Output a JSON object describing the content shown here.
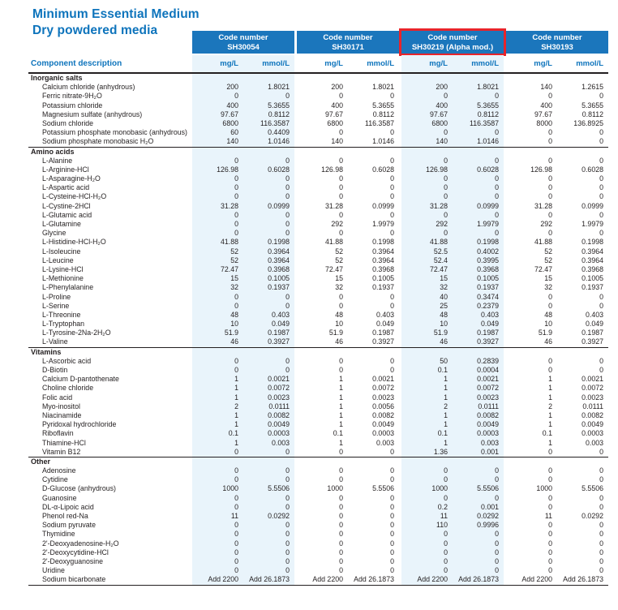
{
  "title": {
    "line1": "Minimum Essential Medium",
    "line2": "Dry powdered media"
  },
  "colors": {
    "header_blue": "#1B76BC",
    "title_blue": "#0E74BC",
    "stripe_blue": "#E9F4FB",
    "highlight_red": "#E8242B",
    "text_dark": "#231F20"
  },
  "table": {
    "component_header": "Component description",
    "code_label": "Code number",
    "unit_headers": [
      "mg/L",
      "mmol/L"
    ],
    "columns": [
      {
        "code": "SH30054",
        "highlighted": false,
        "shaded": true
      },
      {
        "code": "SH30171",
        "highlighted": false,
        "shaded": false
      },
      {
        "code": "SH30219 (Alpha mod.)",
        "highlighted": true,
        "shaded": true
      },
      {
        "code": "SH30193",
        "highlighted": false,
        "shaded": false
      }
    ],
    "sections": [
      {
        "name": "Inorganic salts",
        "rows": [
          {
            "component": "Calcium chloride (anhydrous)",
            "values": [
              "200",
              "1.8021",
              "200",
              "1.8021",
              "200",
              "1.8021",
              "140",
              "1.2615"
            ]
          },
          {
            "component": "Ferric nitrate-9H₂O",
            "values": [
              "0",
              "0",
              "0",
              "0",
              "0",
              "0",
              "0",
              "0"
            ]
          },
          {
            "component": "Potassium chloride",
            "values": [
              "400",
              "5.3655",
              "400",
              "5.3655",
              "400",
              "5.3655",
              "400",
              "5.3655"
            ]
          },
          {
            "component": "Magnesium sulfate (anhydrous)",
            "values": [
              "97.67",
              "0.8112",
              "97.67",
              "0.8112",
              "97.67",
              "0.8112",
              "97.67",
              "0.8112"
            ]
          },
          {
            "component": "Sodium chloride",
            "values": [
              "6800",
              "116.3587",
              "6800",
              "116.3587",
              "6800",
              "116.3587",
              "8000",
              "136.8925"
            ]
          },
          {
            "component": "Potassium phosphate monobasic (anhydrous)",
            "values": [
              "60",
              "0.4409",
              "0",
              "0",
              "0",
              "0",
              "0",
              "0"
            ]
          },
          {
            "component": "Sodium phosphate monobasic H₂O",
            "values": [
              "140",
              "1.0146",
              "140",
              "1.0146",
              "140",
              "1.0146",
              "0",
              "0"
            ]
          }
        ]
      },
      {
        "name": "Amino acids",
        "rows": [
          {
            "component": "L-Alanine",
            "values": [
              "0",
              "0",
              "0",
              "0",
              "0",
              "0",
              "0",
              "0"
            ]
          },
          {
            "component": "L-Arginine-HCl",
            "values": [
              "126.98",
              "0.6028",
              "126.98",
              "0.6028",
              "126.98",
              "0.6028",
              "126.98",
              "0.6028"
            ]
          },
          {
            "component": "L-Asparagine-H₂O",
            "values": [
              "0",
              "0",
              "0",
              "0",
              "0",
              "0",
              "0",
              "0"
            ]
          },
          {
            "component": "L-Aspartic acid",
            "values": [
              "0",
              "0",
              "0",
              "0",
              "0",
              "0",
              "0",
              "0"
            ]
          },
          {
            "component": "L-Cysteine-HCl-H₂O",
            "values": [
              "0",
              "0",
              "0",
              "0",
              "0",
              "0",
              "0",
              "0"
            ]
          },
          {
            "component": "L-Cystine-2HCl",
            "values": [
              "31.28",
              "0.0999",
              "31.28",
              "0.0999",
              "31.28",
              "0.0999",
              "31.28",
              "0.0999"
            ]
          },
          {
            "component": "L-Glutamic acid",
            "values": [
              "0",
              "0",
              "0",
              "0",
              "0",
              "0",
              "0",
              "0"
            ]
          },
          {
            "component": "L-Glutamine",
            "values": [
              "0",
              "0",
              "292",
              "1.9979",
              "292",
              "1.9979",
              "292",
              "1.9979"
            ]
          },
          {
            "component": "Glycine",
            "values": [
              "0",
              "0",
              "0",
              "0",
              "0",
              "0",
              "0",
              "0"
            ]
          },
          {
            "component": "L-Histidine-HCl-H₂O",
            "values": [
              "41.88",
              "0.1998",
              "41.88",
              "0.1998",
              "41.88",
              "0.1998",
              "41.88",
              "0.1998"
            ]
          },
          {
            "component": "L-Isoleucine",
            "values": [
              "52",
              "0.3964",
              "52",
              "0.3964",
              "52.5",
              "0.4002",
              "52",
              "0.3964"
            ]
          },
          {
            "component": "L-Leucine",
            "values": [
              "52",
              "0.3964",
              "52",
              "0.3964",
              "52.4",
              "0.3995",
              "52",
              "0.3964"
            ]
          },
          {
            "component": "L-Lysine-HCl",
            "values": [
              "72.47",
              "0.3968",
              "72.47",
              "0.3968",
              "72.47",
              "0.3968",
              "72.47",
              "0.3968"
            ]
          },
          {
            "component": "L-Methionine",
            "values": [
              "15",
              "0.1005",
              "15",
              "0.1005",
              "15",
              "0.1005",
              "15",
              "0.1005"
            ]
          },
          {
            "component": "L-Phenylalanine",
            "values": [
              "32",
              "0.1937",
              "32",
              "0.1937",
              "32",
              "0.1937",
              "32",
              "0.1937"
            ]
          },
          {
            "component": "L-Proline",
            "values": [
              "0",
              "0",
              "0",
              "0",
              "40",
              "0.3474",
              "0",
              "0"
            ]
          },
          {
            "component": "L-Serine",
            "values": [
              "0",
              "0",
              "0",
              "0",
              "25",
              "0.2379",
              "0",
              "0"
            ]
          },
          {
            "component": "L-Threonine",
            "values": [
              "48",
              "0.403",
              "48",
              "0.403",
              "48",
              "0.403",
              "48",
              "0.403"
            ]
          },
          {
            "component": "L-Tryptophan",
            "values": [
              "10",
              "0.049",
              "10",
              "0.049",
              "10",
              "0.049",
              "10",
              "0.049"
            ]
          },
          {
            "component": "L-Tyrosine-2Na-2H₂O",
            "values": [
              "51.9",
              "0.1987",
              "51.9",
              "0.1987",
              "51.9",
              "0.1987",
              "51.9",
              "0.1987"
            ]
          },
          {
            "component": "L-Valine",
            "values": [
              "46",
              "0.3927",
              "46",
              "0.3927",
              "46",
              "0.3927",
              "46",
              "0.3927"
            ]
          }
        ]
      },
      {
        "name": "Vitamins",
        "rows": [
          {
            "component": "L-Ascorbic acid",
            "values": [
              "0",
              "0",
              "0",
              "0",
              "50",
              "0.2839",
              "0",
              "0"
            ]
          },
          {
            "component": "D-Biotin",
            "values": [
              "0",
              "0",
              "0",
              "0",
              "0.1",
              "0.0004",
              "0",
              "0"
            ]
          },
          {
            "component": "Calcium D-pantothenate",
            "values": [
              "1",
              "0.0021",
              "1",
              "0.0021",
              "1",
              "0.0021",
              "1",
              "0.0021"
            ]
          },
          {
            "component": "Choline chloride",
            "values": [
              "1",
              "0.0072",
              "1",
              "0.0072",
              "1",
              "0.0072",
              "1",
              "0.0072"
            ]
          },
          {
            "component": "Folic acid",
            "values": [
              "1",
              "0.0023",
              "1",
              "0.0023",
              "1",
              "0.0023",
              "1",
              "0.0023"
            ]
          },
          {
            "component": "Myo-inositol",
            "values": [
              "2",
              "0.0111",
              "1",
              "0.0056",
              "2",
              "0.0111",
              "2",
              "0.0111"
            ]
          },
          {
            "component": "Niacinamide",
            "values": [
              "1",
              "0.0082",
              "1",
              "0.0082",
              "1",
              "0.0082",
              "1",
              "0.0082"
            ]
          },
          {
            "component": "Pyridoxal hydrochloride",
            "values": [
              "1",
              "0.0049",
              "1",
              "0.0049",
              "1",
              "0.0049",
              "1",
              "0.0049"
            ]
          },
          {
            "component": "Riboflavin",
            "values": [
              "0.1",
              "0.0003",
              "0.1",
              "0.0003",
              "0.1",
              "0.0003",
              "0.1",
              "0.0003"
            ]
          },
          {
            "component": "Thiamine-HCl",
            "values": [
              "1",
              "0.003",
              "1",
              "0.003",
              "1",
              "0.003",
              "1",
              "0.003"
            ]
          },
          {
            "component": "Vitamin B12",
            "values": [
              "0",
              "0",
              "0",
              "0",
              "1.36",
              "0.001",
              "0",
              "0"
            ]
          }
        ]
      },
      {
        "name": "Other",
        "rows": [
          {
            "component": "Adenosine",
            "values": [
              "0",
              "0",
              "0",
              "0",
              "0",
              "0",
              "0",
              "0"
            ]
          },
          {
            "component": "Cytidine",
            "values": [
              "0",
              "0",
              "0",
              "0",
              "0",
              "0",
              "0",
              "0"
            ]
          },
          {
            "component": "D-Glucose (anhydrous)",
            "values": [
              "1000",
              "5.5506",
              "1000",
              "5.5506",
              "1000",
              "5.5506",
              "1000",
              "5.5506"
            ]
          },
          {
            "component": "Guanosine",
            "values": [
              "0",
              "0",
              "0",
              "0",
              "0",
              "0",
              "0",
              "0"
            ]
          },
          {
            "component": "DL-α-Lipoic acid",
            "values": [
              "0",
              "0",
              "0",
              "0",
              "0.2",
              "0.001",
              "0",
              "0"
            ]
          },
          {
            "component": "Phenol red-Na",
            "values": [
              "11",
              "0.0292",
              "0",
              "0",
              "11",
              "0.0292",
              "11",
              "0.0292"
            ]
          },
          {
            "component": "Sodium pyruvate",
            "values": [
              "0",
              "0",
              "0",
              "0",
              "110",
              "0.9996",
              "0",
              "0"
            ]
          },
          {
            "component": "Thymidine",
            "values": [
              "0",
              "0",
              "0",
              "0",
              "0",
              "0",
              "0",
              "0"
            ]
          },
          {
            "component": "2'-Deoxyadenosine-H₂O",
            "values": [
              "0",
              "0",
              "0",
              "0",
              "0",
              "0",
              "0",
              "0"
            ]
          },
          {
            "component": "2'-Deoxycytidine-HCl",
            "values": [
              "0",
              "0",
              "0",
              "0",
              "0",
              "0",
              "0",
              "0"
            ]
          },
          {
            "component": "2'-Deoxyguanosine",
            "values": [
              "0",
              "0",
              "0",
              "0",
              "0",
              "0",
              "0",
              "0"
            ]
          },
          {
            "component": "Uridine",
            "values": [
              "0",
              "0",
              "0",
              "0",
              "0",
              "0",
              "0",
              "0"
            ]
          },
          {
            "component": "Sodium bicarbonate",
            "values": [
              "Add 2200",
              "Add 26.1873",
              "Add 2200",
              "Add 26.1873",
              "Add 2200",
              "Add 26.1873",
              "Add 2200",
              "Add 26.1873"
            ]
          }
        ]
      }
    ]
  }
}
